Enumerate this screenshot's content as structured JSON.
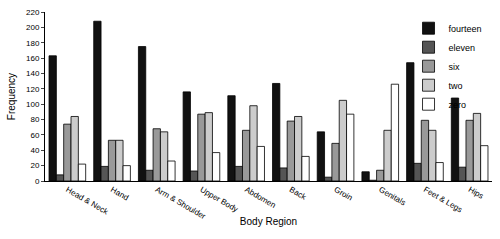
{
  "chart_data": {
    "type": "bar",
    "x_label": "Body Region",
    "y_label": "Frequency",
    "categories": [
      "Head & Neck",
      "Hand",
      "Arm & Shoulder",
      "Upper Body",
      "Abdomen",
      "Back",
      "Groin",
      "Genitals",
      "Feet & Legs",
      "Hips"
    ],
    "series": [
      {
        "name": "fourteen",
        "color": "#111111",
        "values": [
          163,
          208,
          175,
          116,
          111,
          127,
          64,
          12,
          154,
          108
        ]
      },
      {
        "name": "eleven",
        "color": "#555555",
        "values": [
          8,
          19,
          14,
          13,
          19,
          17,
          5,
          1,
          23,
          18
        ]
      },
      {
        "name": "six",
        "color": "#999999",
        "values": [
          74,
          53,
          68,
          87,
          66,
          78,
          49,
          14,
          79,
          79
        ]
      },
      {
        "name": "two",
        "color": "#cccccc",
        "values": [
          84,
          53,
          64,
          89,
          98,
          84,
          105,
          66,
          66,
          88
        ]
      },
      {
        "name": "zero",
        "color": "#ffffff",
        "values": [
          22,
          20,
          26,
          37,
          45,
          32,
          87,
          126,
          24,
          46
        ]
      }
    ],
    "ylim": [
      0,
      220
    ],
    "yticks": [
      0,
      20,
      40,
      60,
      80,
      100,
      120,
      140,
      160,
      180,
      200,
      220
    ],
    "grid": false,
    "legend": "top right"
  }
}
